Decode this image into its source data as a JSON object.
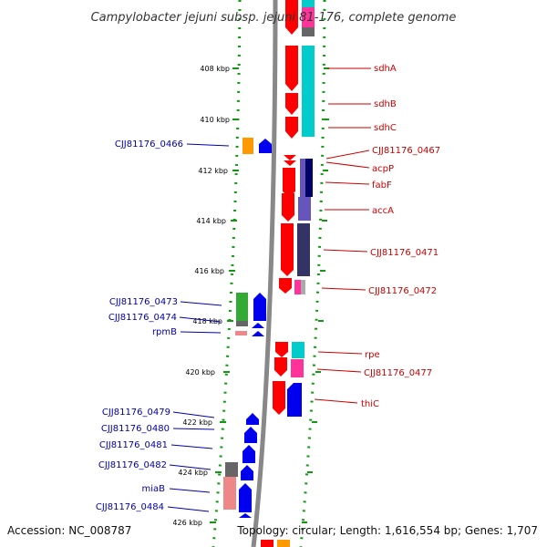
{
  "title": "Campylobacter jejuni subsp. jejuni 81-176, complete genome",
  "ruler": [
    {
      "label": "408 kbp",
      "kbp": 408
    },
    {
      "label": "410 kbp",
      "kbp": 410
    },
    {
      "label": "412 kbp",
      "kbp": 412
    },
    {
      "label": "414 kbp",
      "kbp": 414
    },
    {
      "label": "416 kbp",
      "kbp": 416
    },
    {
      "label": "418 kbp",
      "kbp": 418
    },
    {
      "label": "420 kbp",
      "kbp": 420
    },
    {
      "label": "422 kbp",
      "kbp": 422
    },
    {
      "label": "424 kbp",
      "kbp": 424
    },
    {
      "label": "426 kbp",
      "kbp": 426
    }
  ],
  "labels_right": [
    "sdhA",
    "sdhB",
    "sdhC",
    "CJJ81176_0467",
    "acpP",
    "fabF",
    "accA",
    "CJJ81176_0471",
    "CJJ81176_0472",
    "rpe",
    "CJJ81176_0477",
    "thiC"
  ],
  "labels_left": [
    "CJJ81176_0466",
    "CJJ81176_0473",
    "CJJ81176_0474",
    "rpmB",
    "CJJ81176_0479",
    "CJJ81176_0480",
    "CJJ81176_0481",
    "CJJ81176_0482",
    "miaB",
    "CJJ81176_0484"
  ],
  "footer": {
    "accession": "Accession: NC_008787",
    "topology": "Topology: circular; Length: 1,616,554 bp; Genes: 1,707"
  },
  "colors": {
    "backbone": "#888888",
    "dots": "#119911",
    "forward_gene": "#ff0000",
    "reverse_gene": "#0000ee",
    "cog_cyan": "#00cccc",
    "cog_navy": "#000066",
    "cog_slate": "#333366",
    "cog_purple": "#6655bb",
    "cog_pink": "#ff3399",
    "cog_orange": "#ff9900",
    "cog_green": "#33aa33",
    "cog_gray": "#666666",
    "cog_salmon": "#ee8888",
    "label_red": "#cc0000",
    "label_blue": "#0000aa"
  }
}
